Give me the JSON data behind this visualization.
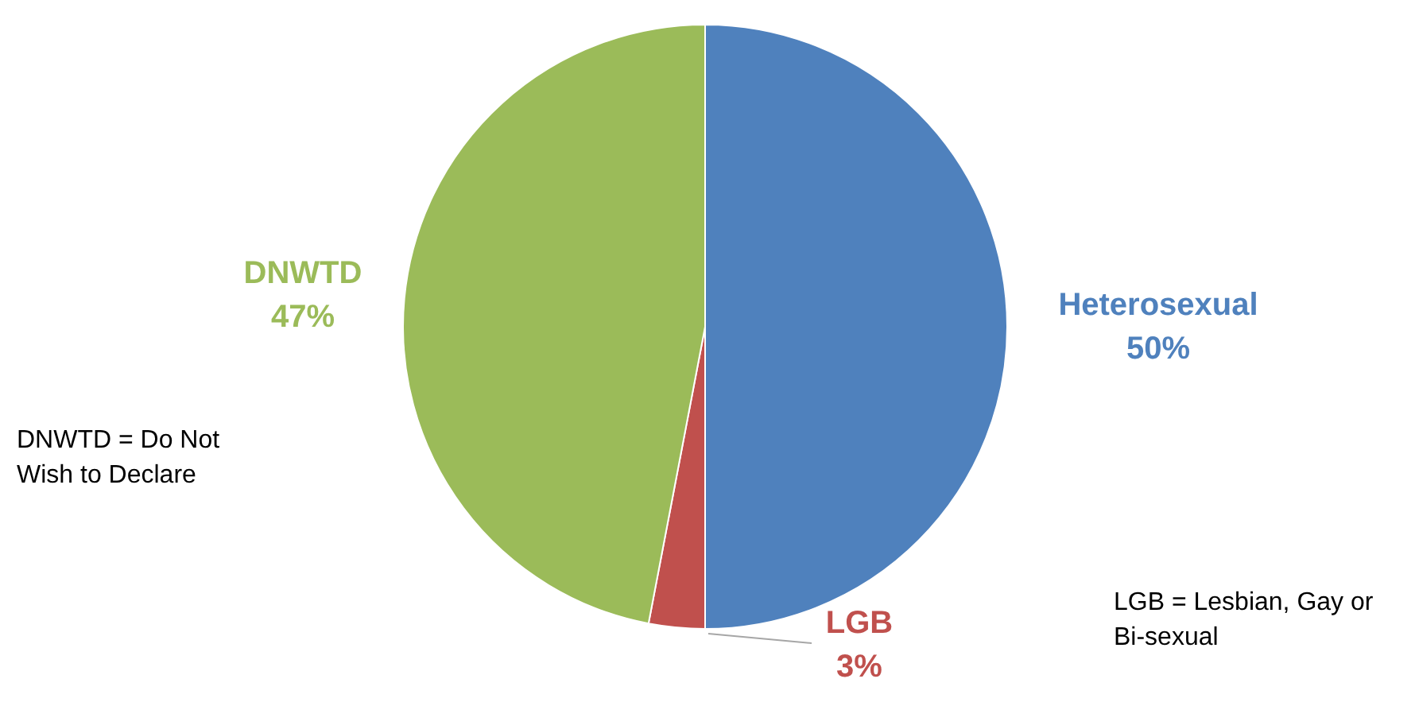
{
  "chart_data": {
    "type": "pie",
    "categories": [
      "Heterosexual",
      "LGB",
      "DNWTD"
    ],
    "values": [
      50,
      3,
      47
    ],
    "colors": [
      "#4f81bd",
      "#c0504d",
      "#9bbb59"
    ],
    "value_labels": [
      "50%",
      "3%",
      "47%"
    ],
    "legend": false,
    "annotations": [
      "DNWTD = Do Not Wish to Declare",
      "LGB = Lesbian, Gay or Bi-sexual"
    ]
  }
}
